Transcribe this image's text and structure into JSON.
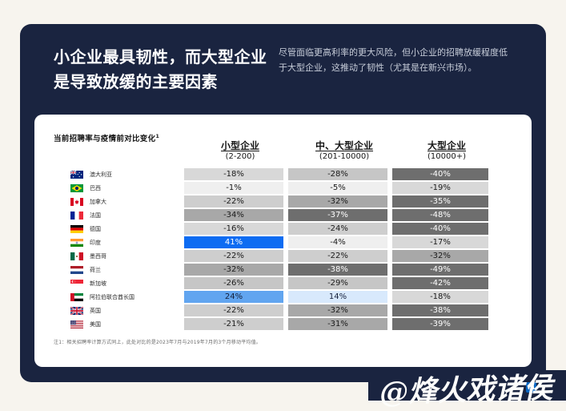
{
  "page": {
    "background": "#f7f4ee"
  },
  "hero": {
    "bg": "#1a2440",
    "title_line1": "小企业最具韧性，而大型企业",
    "title_line2": "是导致放缓的主要因素",
    "subtitle": "尽管面临更高利率的更大风险，但小企业的招聘放缓程度低于大型企业，这推动了韧性（尤其是在新兴市场）。"
  },
  "card": {
    "label": "当前招聘率与疫情前对比变化",
    "label_sup": "1",
    "col_headers": [
      {
        "name": "小型企业",
        "range": "(2-200)"
      },
      {
        "name": "中、大型企业",
        "range": "(201-10000)"
      },
      {
        "name": "大型企业",
        "range": "(10000+)"
      }
    ],
    "footnote": "注1：相关招聘率计算方式同上，此处对比的是2023年7月与2019年7月的3个月移动平均值。"
  },
  "chart_data": {
    "type": "heatmap",
    "title": "当前招聘率与疫情前对比变化¹",
    "unit": "%",
    "columns": [
      "小型企业 (2-200)",
      "中、大型企业 (201-10000)",
      "大型企业 (10000+)"
    ],
    "rows": [
      {
        "country": "澳大利亚",
        "flag": "au",
        "values": [
          -18,
          -28,
          -40
        ]
      },
      {
        "country": "巴西",
        "flag": "br",
        "values": [
          -1,
          -5,
          -19
        ]
      },
      {
        "country": "加拿大",
        "flag": "ca",
        "values": [
          -22,
          -32,
          -35
        ]
      },
      {
        "country": "法国",
        "flag": "fr",
        "values": [
          -34,
          -37,
          -48
        ]
      },
      {
        "country": "德国",
        "flag": "de",
        "values": [
          -16,
          -24,
          -40
        ]
      },
      {
        "country": "印度",
        "flag": "in",
        "values": [
          41,
          -4,
          -17
        ]
      },
      {
        "country": "墨西哥",
        "flag": "mx",
        "values": [
          -22,
          -22,
          -32
        ]
      },
      {
        "country": "荷兰",
        "flag": "nl",
        "values": [
          -32,
          -38,
          -49
        ]
      },
      {
        "country": "新加坡",
        "flag": "sg",
        "values": [
          -26,
          -29,
          -42
        ]
      },
      {
        "country": "阿拉伯联合酋长国",
        "flag": "ae",
        "values": [
          24,
          14,
          -18
        ]
      },
      {
        "country": "英国",
        "flag": "gb",
        "values": [
          -22,
          -32,
          -38
        ]
      },
      {
        "country": "美国",
        "flag": "us",
        "values": [
          -21,
          -31,
          -39
        ]
      }
    ],
    "palette": {
      "positive": [
        {
          "min": 35,
          "bg": "#0d6cf2",
          "fg": "#ffffff"
        },
        {
          "min": 20,
          "bg": "#61a5f0",
          "fg": "#16213c"
        },
        {
          "min": 1,
          "bg": "#d8e9fc",
          "fg": "#16213c"
        }
      ],
      "negative": [
        {
          "min": 35,
          "bg": "#6e6e6e",
          "fg": "#ffffff"
        },
        {
          "min": 30,
          "bg": "#a8a8a8",
          "fg": "#1a1a1a"
        },
        {
          "min": 25,
          "bg": "#c6c6c6",
          "fg": "#1a1a1a"
        },
        {
          "min": 20,
          "bg": "#cecece",
          "fg": "#1a1a1a"
        },
        {
          "min": 10,
          "bg": "#d8d8d8",
          "fg": "#1a1a1a"
        },
        {
          "min": 0,
          "bg": "#efefef",
          "fg": "#1a1a1a"
        }
      ]
    }
  },
  "watermark": {
    "text": "@烽火戏诸侯",
    "badge": "in",
    "badge_color": "#0a66c2",
    "bg": "#1a2440"
  }
}
